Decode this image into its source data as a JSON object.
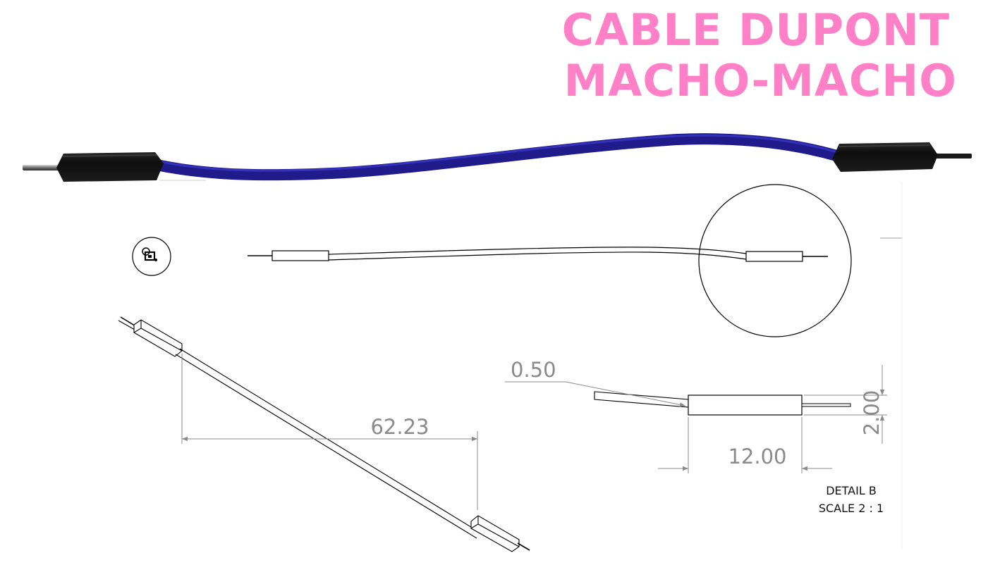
{
  "title": {
    "line1": "CABLE DUPONT",
    "line2": "MACHO-MACHO"
  },
  "colors": {
    "title": "#ff80c7",
    "wire": "#1f1b8a",
    "housing": "#111111",
    "dimension": "#8a8a8a",
    "outline": "#000000"
  },
  "dimensions": {
    "overall_length": "62.23",
    "housing_length": "12.00",
    "housing_height": "2.00",
    "pin_diameter": "0.50"
  },
  "detail": {
    "label": "DETAIL B",
    "scale": "SCALE 2 : 1"
  }
}
